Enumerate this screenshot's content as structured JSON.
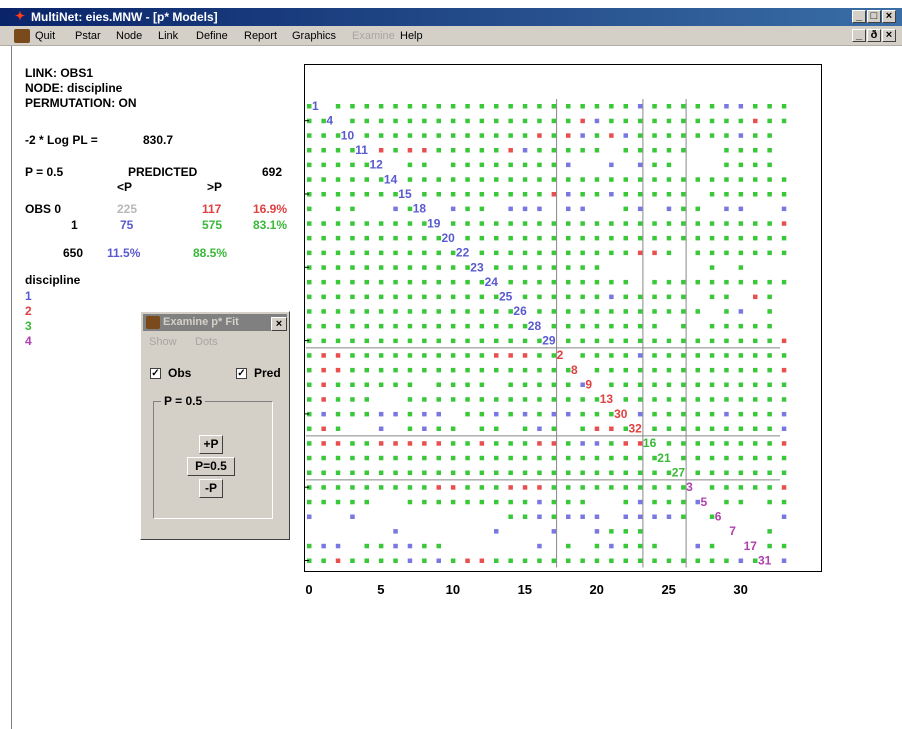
{
  "window": {
    "title": "MultiNet: eies.MNW - [p* Models]",
    "controls": [
      "_",
      "□",
      "×"
    ],
    "mdi_controls": [
      "_",
      "ð",
      "×"
    ]
  },
  "menu": [
    {
      "label": "Quit",
      "enabled": true
    },
    {
      "label": "Pstar",
      "enabled": true
    },
    {
      "label": "Node",
      "enabled": true
    },
    {
      "label": "Link",
      "enabled": true
    },
    {
      "label": "Define",
      "enabled": true
    },
    {
      "label": "Report",
      "enabled": true
    },
    {
      "label": "Graphics",
      "enabled": true
    },
    {
      "label": "Examine",
      "enabled": false
    },
    {
      "label": "Help",
      "enabled": true
    }
  ],
  "info": {
    "link": "LINK: OBS1",
    "node": "NODE: discipline",
    "permutation": "PERMUTATION: ON",
    "loglik_label": "-2 * Log PL =",
    "loglik_value": "830.7",
    "p_label": "P = 0.5",
    "predicted_label": "PREDICTED",
    "predicted_total": "692",
    "col_lt": "<P",
    "col_gt": ">P",
    "obs_label": "OBS 0",
    "obs1_label": "1",
    "obs0_lt": "225",
    "obs0_gt": "117",
    "obs0_pct": "16.9%",
    "obs1_lt": "75",
    "obs1_gt": "575",
    "obs1_pct": "83.1%",
    "total": "650",
    "total_lt_pct": "11.5%",
    "total_gt_pct": "88.5%"
  },
  "legend": {
    "title": "discipline",
    "items": [
      {
        "label": "1",
        "color": "#5a5ad0"
      },
      {
        "label": "2",
        "color": "#e04040"
      },
      {
        "label": "3",
        "color": "#3ab83a"
      },
      {
        "label": "4",
        "color": "#b040b0"
      }
    ]
  },
  "dialog": {
    "title": "Examine p* Fit",
    "close": "×",
    "menu": [
      "Show",
      "Dots"
    ],
    "obs_label": "Obs",
    "obs_checked": true,
    "pred_label": "Pred",
    "pred_checked": true,
    "check_mark": "✓",
    "group_label": "P = 0.5",
    "btn_plus": "+P",
    "btn_reset": "P=0.5",
    "btn_minus": "-P"
  },
  "chart_data": {
    "type": "scatter",
    "xticks": [
      "0",
      "5",
      "10",
      "15",
      "20",
      "25",
      "30"
    ],
    "xlim": [
      0,
      32
    ],
    "node_order": [
      1,
      4,
      10,
      11,
      12,
      14,
      15,
      18,
      19,
      20,
      22,
      23,
      24,
      25,
      26,
      28,
      29,
      2,
      8,
      9,
      13,
      30,
      32,
      16,
      21,
      27,
      3,
      5,
      6,
      7,
      17,
      31
    ],
    "node_group": [
      1,
      1,
      1,
      1,
      1,
      1,
      1,
      1,
      1,
      1,
      1,
      1,
      1,
      1,
      1,
      1,
      1,
      2,
      2,
      2,
      2,
      2,
      2,
      3,
      3,
      3,
      4,
      4,
      4,
      4,
      4,
      4
    ],
    "group_colors": {
      "1": "#5a5ad0",
      "2": "#e04040",
      "3": "#3ab83a",
      "4": "#b040b0"
    },
    "cell_colors": {
      "O": "#3ac83a",
      "B": "#7878e0",
      "R": "#e85050"
    },
    "matrix": [
      "OOOOOOOOOOOOOOOOOOOOOOOBOOOOOBBOOO",
      "OOOOOOOOOOOOOOOOOOORBOOOOOOOOOOROO",
      "OOOOOOOOOOOOOOOORORBORBOOOOOOOBOO.",
      "OOOOORORROOOOORBOOOOO.OOOOO..OOOO.",
      "OOOOO..OO.OOOOOOOOB..B.BOO...OOOO.",
      "OOOOOOOOOOOOOOOOOOOOOOOOOOOOOOOOOO",
      "OOOOOOOOOOOOOOOOORBOOBOOOOO.OOOOOO",
      "O.OO..BO..BOO.BBB.BB..OB.BOO.BB..B",
      "OOOOOOOOOOOOOOOOOOOOOOOOOOOOOOOOOR",
      "OOOOOOOOOOOOOOOOOOOOOOOOOOOOOOOOOO",
      "OOOOOOOOOOOOOOOOOOOOOOORRO.OOOOOOO",
      "OOOOOOOOOOOOOOOOOOOOO.......O.O...",
      "OOOOOOOOOOOOOOOOOOOOOOO.OOOOOOOOOO",
      "OOOOOOOOOOOOOOOOOOOOOBOOOOO.OO.RO.",
      "OOOOOOOOOOOOOOOOOOOOOOOOOOOO.OB.O.",
      "OOOOOOOOOOOOOOOOOOOOOOOOO.O.OOOOO.",
      "OOOOOOOOOOOOOOOOOOOOOOOOOOOOOOOOOR",
      "ORROOOOOOOOOORRROOOOOOOBOOOOOOOOOO",
      "ORROOOOOOOOOOOOOOOOOOOOOOOOOOOOOOR",
      "OROOOOOO.OOOO.OOOOOBOOOOOOOOOOOOOO",
      "OROOO..OOOOOOOOOOOOOOOOOOOOOOOOOOO",
      "OBOOOBBOBB.OOBOBOBBOOOOBOOOOOBOOOB",
      "ORO..B.OBOO.OO.OBO.ORRO.OOOOOOOOOB",
      "ORROORRRRROOROOORROBBORRBOOOOOOOOR",
      "OOOOOOOOOOOOOOOOOOOOOOOOOOOOOOOOOO",
      "OOOOOOOOOOOOOOOOOOOOOOOOOOOOOOOOOO",
      "OOOOOOOOORROOORRROOOOOOOOOOOOOOOOR",
      "OOOOO..OOOOOOOOOBOOO..OBOOOBOOO.OO",
      "B..B..........OOBOBBB.BBBBO.O....B",
      "......B......B...B..BOOO........O.",
      "OBB.OOBBOO......B.O.OBOOO..BO..OOO",
      "OOROOOOBOBORROOOOOOOOOOOOOOOOOBOOB"
    ],
    "row_label_col": [
      0,
      1,
      2,
      3,
      4,
      5,
      6,
      7,
      8,
      9,
      10,
      11,
      12,
      13,
      14,
      15,
      16,
      17,
      18,
      19,
      20,
      21,
      22,
      23,
      24,
      25,
      26,
      27,
      28,
      29,
      30,
      31
    ]
  }
}
